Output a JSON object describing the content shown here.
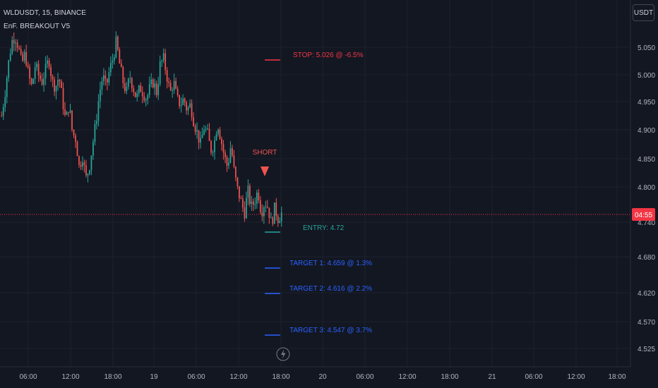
{
  "header": {
    "symbol_line": "WLDUSDT, 15, BINANCE",
    "indicator": "EnF. BREAKOUT V5"
  },
  "currency_button": "USDT",
  "colors": {
    "background": "#131722",
    "grid": "#1e222d",
    "up": "#26a69a",
    "down": "#ef5350",
    "stop": "#f23645",
    "entry": "#26a69a",
    "target": "#2962ff",
    "axis_text": "#b2b5be"
  },
  "chart_data": {
    "type": "candlestick",
    "symbol": "WLDUSDT",
    "interval": "15",
    "exchange": "BINANCE",
    "ylim": [
      4.51,
      5.1
    ],
    "y_ticks": [
      "5.050",
      "5.000",
      "4.950",
      "4.900",
      "4.850",
      "4.800",
      "4.740",
      "4.680",
      "4.620",
      "4.570",
      "4.525"
    ],
    "x_ticks": [
      "06:00",
      "12:00",
      "18:00",
      "19",
      "06:00",
      "12:00",
      "18:00",
      "20",
      "06:00",
      "12:00",
      "18:00",
      "21",
      "06:00",
      "12:00",
      "18:00"
    ],
    "current_price_label": "04:55",
    "annotations": {
      "stop": "STOP: 5.026 @ -6.5%",
      "entry": "ENTRY: 4.72",
      "target1": "TARGET 1: 4.659 @ 1.3%",
      "target2": "TARGET 2: 4.616 @ 2.2%",
      "target3": "TARGET 3: 4.547 @ 3.7%",
      "signal": "SHORT"
    },
    "levels": {
      "stop": 5.026,
      "entry": 4.72,
      "target1": 4.659,
      "target2": 4.616,
      "target3": 4.547,
      "current": 4.755
    },
    "price_path": [
      4.93,
      4.97,
      5.02,
      5.06,
      5.07,
      5.05,
      5.02,
      5.04,
      5.0,
      4.98,
      5.02,
      5.0,
      4.99,
      5.01,
      5.03,
      4.99,
      4.98,
      5.0,
      4.96,
      4.92,
      4.95,
      4.9,
      4.89,
      4.84,
      4.86,
      4.82,
      4.84,
      4.88,
      4.92,
      4.97,
      5.0,
      4.98,
      5.01,
      5.03,
      5.06,
      5.02,
      4.99,
      4.97,
      5.0,
      4.98,
      4.96,
      4.98,
      4.97,
      4.96,
      4.98,
      4.99,
      4.97,
      5.02,
      5.03,
      5.0,
      4.97,
      4.99,
      4.96,
      4.95,
      4.96,
      4.94,
      4.95,
      4.92,
      4.9,
      4.88,
      4.91,
      4.9,
      4.87,
      4.88,
      4.92,
      4.89,
      4.86,
      4.84,
      4.88,
      4.83,
      4.8,
      4.78,
      4.76,
      4.8,
      4.77,
      4.78,
      4.8,
      4.76,
      4.78,
      4.77,
      4.74,
      4.77,
      4.75,
      4.76
    ],
    "signal_price": 4.83
  }
}
